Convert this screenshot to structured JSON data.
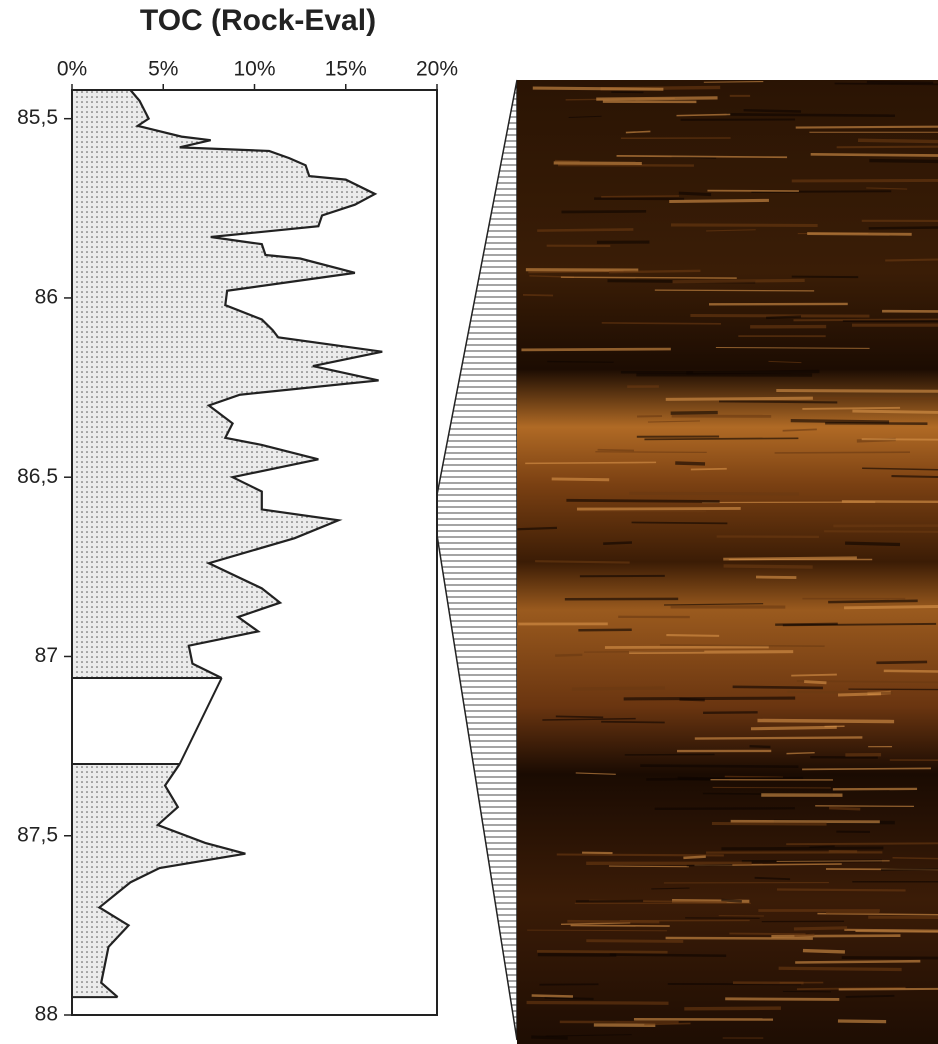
{
  "chart_data": {
    "type": "area",
    "title": "TOC (Rock-Eval)",
    "x": [
      85.42,
      85.45,
      85.5,
      85.52,
      85.53,
      85.55,
      85.56,
      85.58,
      85.59,
      85.61,
      85.63,
      85.66,
      85.67,
      85.71,
      85.74,
      85.77,
      85.8,
      85.83,
      85.85,
      85.88,
      85.89,
      85.93,
      85.98,
      86.02,
      86.06,
      86.09,
      86.11,
      86.15,
      86.19,
      86.23,
      86.27,
      86.3,
      86.35,
      86.39,
      86.41,
      86.45,
      86.5,
      86.54,
      86.59,
      86.62,
      86.67,
      86.74,
      86.81,
      86.85,
      86.89,
      86.93,
      86.97,
      87.02,
      87.06,
      null,
      87.3,
      87.36,
      87.42,
      87.47,
      87.52,
      87.55,
      87.59,
      87.63,
      87.7,
      87.75,
      87.81,
      87.91,
      87.95
    ],
    "values": [
      3.2,
      3.7,
      4.2,
      3.6,
      4.4,
      6.0,
      7.6,
      5.9,
      10.8,
      11.9,
      12.8,
      13.0,
      15.0,
      16.6,
      15.5,
      13.7,
      13.5,
      7.6,
      10.4,
      10.6,
      12.5,
      15.5,
      8.5,
      8.4,
      10.4,
      11.0,
      11.3,
      17.0,
      13.2,
      16.8,
      9.2,
      7.5,
      8.8,
      8.4,
      10.4,
      13.5,
      8.8,
      10.4,
      10.4,
      14.6,
      12.2,
      7.5,
      10.4,
      11.4,
      9.1,
      10.2,
      6.4,
      6.6,
      8.2,
      null,
      5.9,
      5.1,
      5.8,
      4.7,
      7.3,
      9.5,
      4.8,
      3.2,
      1.5,
      3.1,
      2.0,
      1.6,
      2.5
    ],
    "xlim": [
      85.42,
      88
    ],
    "xticks": [
      {
        "value": 85.5,
        "label": "85,5"
      },
      86,
      {
        "value": 86.5,
        "label": "86,5"
      },
      87,
      {
        "value": 87.5,
        "label": "87,5"
      },
      88
    ],
    "ylim": [
      0,
      20
    ],
    "yticks": [
      {
        "value": 0,
        "label": "0%"
      },
      {
        "value": 5,
        "label": "5%"
      },
      {
        "value": 10,
        "label": "10%"
      },
      {
        "value": 15,
        "label": "15%"
      },
      {
        "value": 20,
        "label": "20%"
      }
    ],
    "color": "#e6e6e6"
  }
}
